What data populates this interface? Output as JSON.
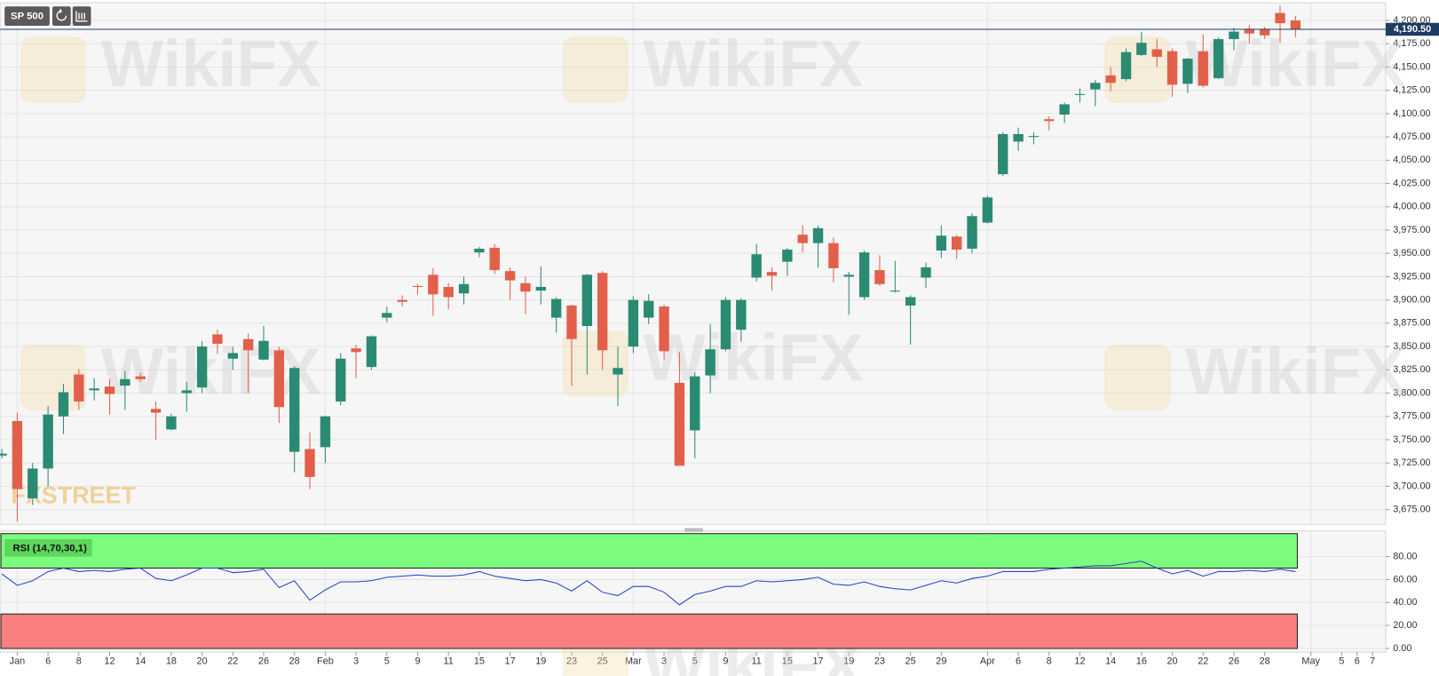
{
  "chart_data": [
    {
      "type": "candlestick",
      "title": "SP 500",
      "watermark": "WikiFX",
      "logo": "FXSTREET",
      "up_color": "#2b8a72",
      "down_color": "#e2604a",
      "categories": [
        null,
        "Jan",
        null,
        "6",
        null,
        "8",
        null,
        "12",
        null,
        "14",
        null,
        "18",
        null,
        "20",
        null,
        "22",
        null,
        "26",
        null,
        "28",
        null,
        "Feb",
        null,
        "3",
        null,
        "5",
        null,
        "9",
        null,
        "11",
        null,
        "15",
        null,
        "17",
        null,
        "19",
        null,
        "23",
        null,
        "25",
        null,
        "Mar",
        null,
        "3",
        null,
        "5",
        null,
        "9",
        null,
        "11",
        null,
        "15",
        null,
        "17",
        null,
        "19",
        null,
        "23",
        null,
        "25",
        null,
        "29",
        null,
        null,
        "Apr",
        null,
        "6",
        null,
        "8",
        null,
        "12",
        null,
        "14",
        null,
        "16",
        null,
        "20",
        null,
        "22",
        null,
        "26",
        null,
        "28",
        null,
        null,
        "May",
        null,
        "5",
        "6",
        "7"
      ],
      "open": [
        3733,
        3770,
        3687,
        3719,
        3775,
        3820,
        3803,
        3807,
        3808,
        3818,
        3783,
        3761,
        3800,
        3806,
        3863,
        3837,
        3858,
        3836,
        3846,
        3737,
        3740,
        3742,
        3791,
        3848,
        3828,
        3881,
        3900,
        3915,
        3927,
        3914,
        3907,
        3951,
        3956,
        3931,
        3918,
        3910,
        3881,
        3894,
        3872,
        3929,
        3820,
        3850,
        3881,
        3893,
        3811,
        3760,
        3819,
        3847,
        3868,
        3924,
        3930,
        3941,
        3970,
        3961,
        3961,
        3925,
        3903,
        3932,
        3909,
        3894,
        3924,
        3953,
        3968,
        3955,
        3983,
        4035,
        4070,
        4075,
        4094,
        4099,
        4120,
        4126,
        4141,
        4137,
        4163,
        4169,
        4167,
        4132,
        4167,
        4138,
        4180,
        4191,
        4190,
        4208,
        4200,
        null,
        null,
        null,
        null,
        null
      ],
      "high": [
        3740,
        3779,
        3725,
        3786,
        3810,
        3826,
        3816,
        3815,
        3824,
        3822,
        3791,
        3778,
        3812,
        3856,
        3868,
        3850,
        3864,
        3872,
        3850,
        3829,
        3758,
        3776,
        3843,
        3852,
        3862,
        3893,
        3905,
        3917,
        3934,
        3918,
        3925,
        3957,
        3960,
        3935,
        3925,
        3936,
        3903,
        3895,
        3928,
        3931,
        3850,
        3904,
        3906,
        3895,
        3844,
        3822,
        3874,
        3903,
        3902,
        3960,
        3935,
        3956,
        3980,
        3980,
        3967,
        3930,
        3953,
        3948,
        3942,
        3905,
        3940,
        3980,
        3970,
        3993,
        4012,
        4080,
        4085,
        4080,
        4097,
        4112,
        4127,
        4136,
        4150,
        4170,
        4188,
        4180,
        4170,
        4160,
        4185,
        4182,
        4192,
        4195,
        4193,
        4216,
        4205,
        null,
        null,
        null,
        null,
        null
      ],
      "low": [
        3730,
        3662,
        3680,
        3700,
        3756,
        3782,
        3792,
        3777,
        3782,
        3812,
        3750,
        3760,
        3780,
        3800,
        3842,
        3825,
        3800,
        3835,
        3768,
        3715,
        3697,
        3725,
        3787,
        3816,
        3825,
        3876,
        3893,
        3906,
        3883,
        3890,
        3895,
        3946,
        3928,
        3900,
        3885,
        3895,
        3865,
        3808,
        3820,
        3825,
        3786,
        3843,
        3874,
        3836,
        3722,
        3730,
        3800,
        3845,
        3855,
        3920,
        3910,
        3926,
        3951,
        3935,
        3919,
        3884,
        3900,
        3915,
        3908,
        3852,
        3913,
        3945,
        3944,
        3950,
        3982,
        4033,
        4060,
        4067,
        4082,
        4090,
        4112,
        4108,
        4124,
        4135,
        4162,
        4150,
        4118,
        4122,
        4128,
        4137,
        4168,
        4175,
        4180,
        4176,
        4182,
        null,
        null,
        null,
        null,
        null
      ],
      "close": [
        3735,
        3697,
        3719,
        3777,
        3801,
        3791,
        3805,
        3799,
        3815,
        3815,
        3779,
        3775,
        3803,
        3850,
        3853,
        3843,
        3846,
        3856,
        3785,
        3827,
        3710,
        3775,
        3837,
        3844,
        3861,
        3886,
        3898,
        3914,
        3906,
        3903,
        3917,
        3955,
        3932,
        3921,
        3909,
        3914,
        3901,
        3858,
        3927,
        3846,
        3827,
        3900,
        3899,
        3845,
        3722,
        3818,
        3847,
        3900,
        3900,
        3949,
        3926,
        3954,
        3961,
        3977,
        3934,
        3927,
        3951,
        3917,
        3910,
        3903,
        3935,
        3969,
        3954,
        3990,
        4010,
        4078,
        4078,
        4076,
        4092,
        4110,
        4121,
        4133,
        4133,
        4166,
        4176,
        4161,
        4131,
        4159,
        4130,
        4180,
        4188,
        4186,
        4184,
        4197,
        4190.5,
        null,
        null,
        null,
        null,
        null
      ],
      "last_price": {
        "value": 4190.5,
        "label": "4,190.50"
      },
      "ylim": [
        3660,
        4219
      ],
      "yticks": [
        {
          "value": 3675,
          "label": "3,675.00"
        },
        {
          "value": 3700,
          "label": "3,700.00"
        },
        {
          "value": 3725,
          "label": "3,725.00"
        },
        {
          "value": 3750,
          "label": "3,750.00"
        },
        {
          "value": 3775,
          "label": "3,775.00"
        },
        {
          "value": 3800,
          "label": "3,800.00"
        },
        {
          "value": 3825,
          "label": "3,825.00"
        },
        {
          "value": 3850,
          "label": "3,850.00"
        },
        {
          "value": 3875,
          "label": "3,875.00"
        },
        {
          "value": 3900,
          "label": "3,900.00"
        },
        {
          "value": 3925,
          "label": "3,925.00"
        },
        {
          "value": 3950,
          "label": "3,950.00"
        },
        {
          "value": 3975,
          "label": "3,975.00"
        },
        {
          "value": 4000,
          "label": "4,000.00"
        },
        {
          "value": 4025,
          "label": "4,025.00"
        },
        {
          "value": 4050,
          "label": "4,050.00"
        },
        {
          "value": 4075,
          "label": "4,075.00"
        },
        {
          "value": 4100,
          "label": "4,100.00"
        },
        {
          "value": 4125,
          "label": "4,125.00"
        },
        {
          "value": 4150,
          "label": "4,150.00"
        },
        {
          "value": 4175,
          "label": "4,175.00"
        },
        {
          "value": 4200,
          "label": "4,200.00"
        }
      ],
      "grid": true
    },
    {
      "type": "line",
      "title": "RSI (14,70,30,1)",
      "color": "#2742c8",
      "upper_band": 70,
      "lower_band": 30,
      "upper_color": "#7cfc7c",
      "lower_color": "#fa7f7f",
      "values": [
        65,
        55,
        59,
        67,
        70,
        67,
        68,
        67,
        69,
        70,
        61,
        59,
        64,
        70,
        70,
        66,
        67,
        69,
        53,
        59,
        42,
        51,
        58,
        58,
        59,
        62,
        63,
        64,
        63,
        63,
        64,
        67,
        63,
        61,
        59,
        60,
        57,
        50,
        59,
        49,
        46,
        54,
        54,
        49,
        38,
        47,
        50,
        54,
        54,
        59,
        58,
        59,
        60,
        62,
        56,
        55,
        58,
        54,
        52,
        51,
        55,
        59,
        57,
        61,
        63,
        67,
        67,
        67,
        69,
        70,
        71,
        72,
        72,
        74,
        76,
        70,
        65,
        68,
        63,
        67,
        67,
        68,
        67,
        69,
        67,
        null,
        null,
        null,
        null,
        null
      ],
      "ylim": [
        0,
        100
      ],
      "yticks": [
        {
          "value": 0,
          "label": "0.00"
        },
        {
          "value": 20,
          "label": "20.00"
        },
        {
          "value": 40,
          "label": "40.00"
        },
        {
          "value": 60,
          "label": "60.00"
        },
        {
          "value": 80,
          "label": "80.00"
        }
      ]
    }
  ]
}
